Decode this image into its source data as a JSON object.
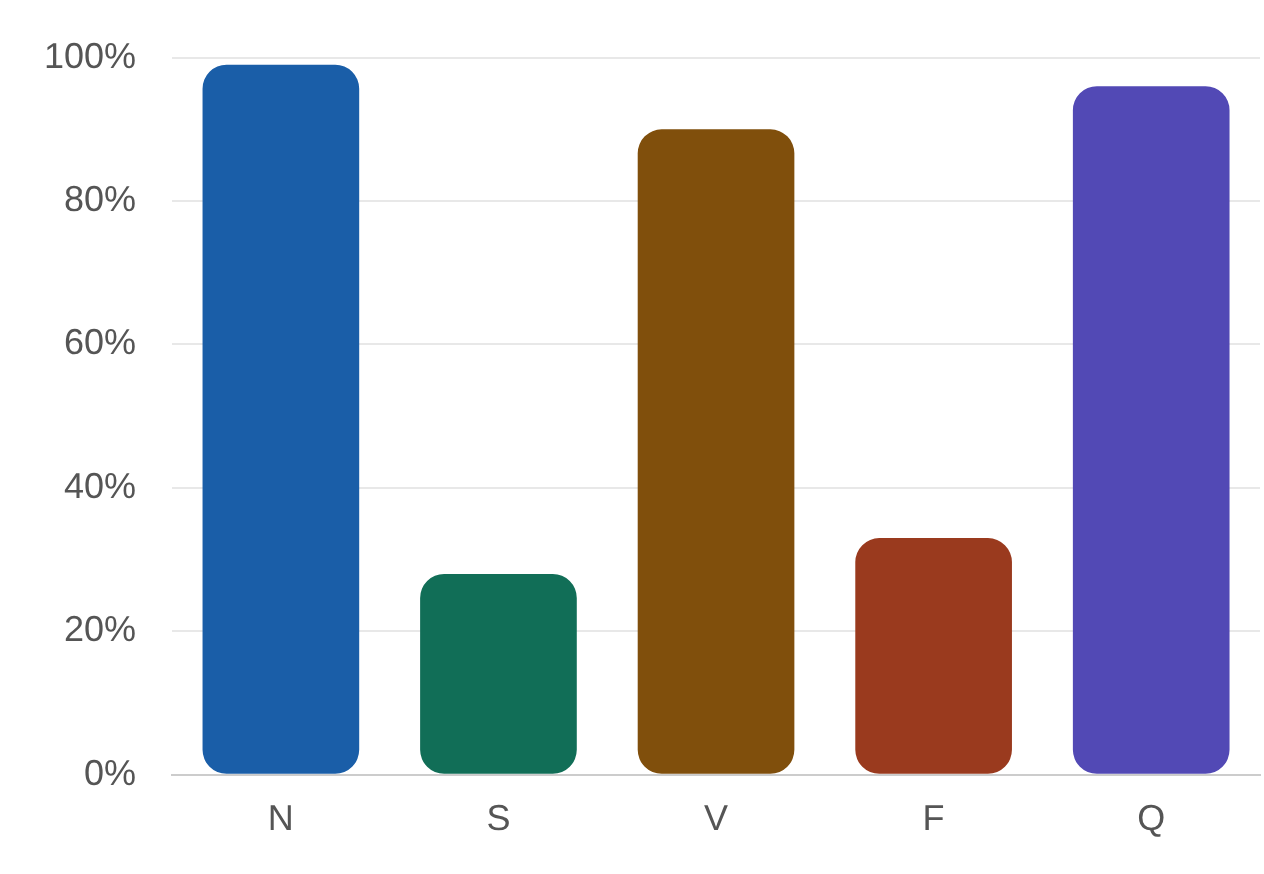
{
  "chart_data": {
    "type": "bar",
    "categories": [
      "N",
      "S",
      "V",
      "F",
      "Q"
    ],
    "values": [
      99,
      28,
      90,
      33,
      96
    ],
    "colors": [
      "#1a5ea8",
      "#116e57",
      "#804f0c",
      "#9a3a1e",
      "#5249b5"
    ],
    "ylim": [
      0,
      100
    ],
    "yticks": [
      {
        "value": 0,
        "label": "0%"
      },
      {
        "value": 20,
        "label": "20%"
      },
      {
        "value": 40,
        "label": "40%"
      },
      {
        "value": 60,
        "label": "60%"
      },
      {
        "value": 80,
        "label": "80%"
      },
      {
        "value": 100,
        "label": "100%"
      }
    ],
    "grid": "y",
    "legend": false
  }
}
